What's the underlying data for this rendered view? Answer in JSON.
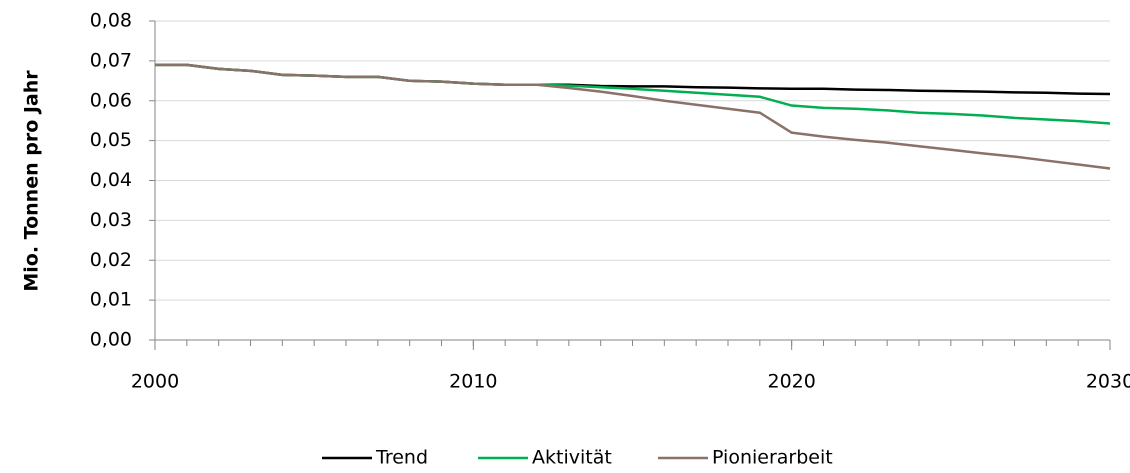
{
  "chart_data": {
    "type": "line",
    "y_label": "Mio. Tonnen pro Jahr",
    "x": [
      2000,
      2001,
      2002,
      2003,
      2004,
      2005,
      2006,
      2007,
      2008,
      2009,
      2010,
      2011,
      2012,
      2013,
      2014,
      2015,
      2016,
      2017,
      2018,
      2019,
      2020,
      2021,
      2022,
      2023,
      2024,
      2025,
      2026,
      2027,
      2028,
      2029,
      2030
    ],
    "series": [
      {
        "name": "Trend",
        "color": "#000000",
        "values": [
          0.069,
          0.069,
          0.068,
          0.0675,
          0.0665,
          0.0663,
          0.066,
          0.066,
          0.065,
          0.0648,
          0.0643,
          0.064,
          0.064,
          0.064,
          0.0637,
          0.0636,
          0.0636,
          0.0634,
          0.0633,
          0.0631,
          0.063,
          0.063,
          0.0628,
          0.0627,
          0.0625,
          0.0624,
          0.0623,
          0.0621,
          0.062,
          0.0618,
          0.0617
        ]
      },
      {
        "name": "Aktivität",
        "color": "#00b050",
        "values": [
          0.069,
          0.069,
          0.068,
          0.0675,
          0.0665,
          0.0663,
          0.066,
          0.066,
          0.065,
          0.0648,
          0.0643,
          0.064,
          0.064,
          0.0638,
          0.0634,
          0.063,
          0.0625,
          0.062,
          0.0615,
          0.061,
          0.0588,
          0.0582,
          0.058,
          0.0576,
          0.057,
          0.0567,
          0.0563,
          0.0557,
          0.0553,
          0.0549,
          0.0543
        ]
      },
      {
        "name": "Pionierarbeit",
        "color": "#8b7168",
        "values": [
          0.069,
          0.069,
          0.068,
          0.0675,
          0.0665,
          0.0663,
          0.066,
          0.066,
          0.065,
          0.0648,
          0.0643,
          0.064,
          0.064,
          0.0632,
          0.0623,
          0.0612,
          0.06,
          0.059,
          0.058,
          0.057,
          0.052,
          0.051,
          0.0502,
          0.0495,
          0.0486,
          0.0477,
          0.0468,
          0.046,
          0.045,
          0.044,
          0.043
        ]
      }
    ],
    "xlim": [
      2000,
      2030
    ],
    "xticks": [
      2000,
      2010,
      2020,
      2030
    ],
    "ylim": [
      0,
      0.08
    ],
    "yticks": [
      {
        "value": 0,
        "label": "0,00"
      },
      {
        "value": 0.01,
        "label": "0,01"
      },
      {
        "value": 0.02,
        "label": "0,02"
      },
      {
        "value": 0.03,
        "label": "0,03"
      },
      {
        "value": 0.04,
        "label": "0,04"
      },
      {
        "value": 0.05,
        "label": "0,05"
      },
      {
        "value": 0.06,
        "label": "0,06"
      },
      {
        "value": 0.07,
        "label": "0,07"
      },
      {
        "value": 0.08,
        "label": "0,08"
      }
    ],
    "grid": true,
    "legend": "bottom"
  }
}
